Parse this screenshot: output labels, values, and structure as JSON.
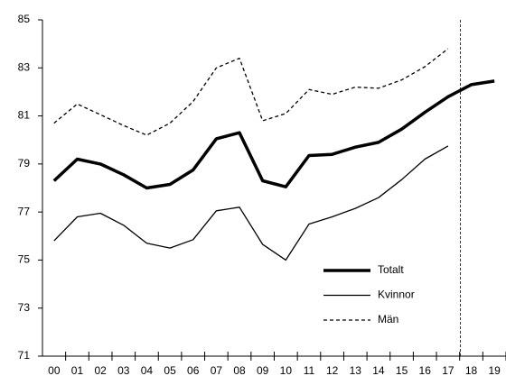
{
  "chart_data": {
    "type": "line",
    "categories": [
      "00",
      "01",
      "02",
      "03",
      "04",
      "05",
      "06",
      "07",
      "08",
      "09",
      "10",
      "11",
      "12",
      "13",
      "14",
      "15",
      "16",
      "17",
      "18",
      "19"
    ],
    "series": [
      {
        "name": "Totalt",
        "color": "#000000",
        "width": 3.5,
        "dash": "none",
        "values": [
          78.3,
          79.2,
          79.0,
          78.55,
          78.0,
          78.15,
          78.75,
          80.05,
          80.3,
          78.3,
          78.05,
          79.35,
          79.4,
          79.7,
          79.9,
          80.45,
          81.15,
          81.8,
          82.3,
          82.45
        ]
      },
      {
        "name": "Kvinnor",
        "color": "#000000",
        "width": 1.3,
        "dash": "none",
        "values": [
          75.8,
          76.8,
          76.95,
          76.45,
          75.7,
          75.5,
          75.85,
          77.05,
          77.2,
          75.65,
          75.0,
          76.5,
          76.8,
          77.15,
          77.6,
          78.35,
          79.2,
          79.75,
          null,
          null
        ]
      },
      {
        "name": "Män",
        "color": "#000000",
        "width": 1.3,
        "dash": "4 3",
        "values": [
          80.7,
          81.5,
          81.05,
          80.6,
          80.2,
          80.7,
          81.6,
          83.0,
          83.4,
          80.8,
          81.1,
          82.1,
          81.9,
          82.2,
          82.15,
          82.5,
          83.05,
          83.8,
          null,
          null
        ]
      }
    ],
    "ylim": [
      71,
      85
    ],
    "yticks": [
      71,
      73,
      75,
      77,
      79,
      81,
      83,
      85
    ],
    "grid": false,
    "legend": "lower right"
  }
}
